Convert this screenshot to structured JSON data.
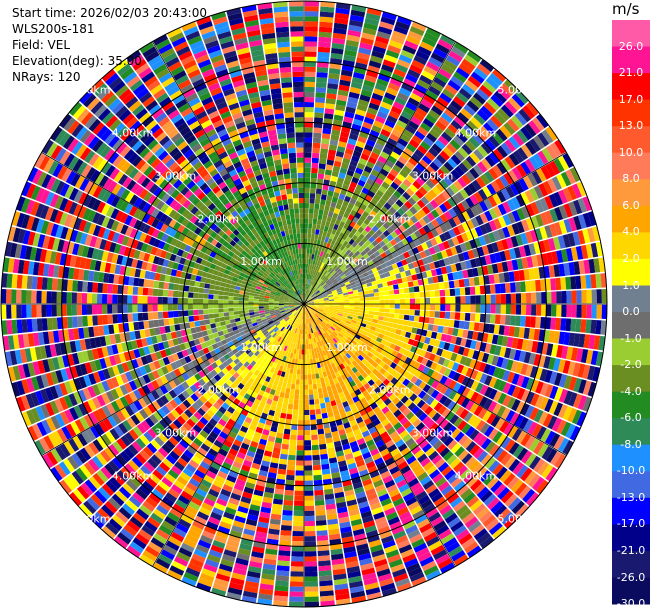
{
  "header": {
    "start_time": "Start time: 2026/02/03 20:43:00",
    "instrument": "WLS200s-181",
    "field": "Field: VEL",
    "elevation": "Elevation(deg): 35.00",
    "nrays": "NRays: 120"
  },
  "colorbar": {
    "unit": "m/s",
    "ticks": [
      "26.0",
      "21.0",
      "17.0",
      "13.0",
      "10.0",
      "8.0",
      "6.0",
      "4.0",
      "2.0",
      "1.0",
      "0.0",
      "-1.0",
      "-2.0",
      "-4.0",
      "-6.0",
      "-8.0",
      "-10.0",
      "-13.0",
      "-17.0",
      "-21.0",
      "-26.0",
      "-30.0"
    ],
    "colors": [
      "#ff5aa8",
      "#ff1493",
      "#ff0000",
      "#ff3300",
      "#ff5a2e",
      "#ff7b5a",
      "#ff9a3c",
      "#ffa500",
      "#ffd700",
      "#ffff00",
      "#708090",
      "#6e6e6e",
      "#9acd32",
      "#6b8e23",
      "#228b22",
      "#2e8b57",
      "#1e90ff",
      "#4169e1",
      "#0000ff",
      "#00008b",
      "#191970",
      "#0a0a5e"
    ]
  },
  "chart_data": {
    "type": "ppi",
    "field": "VEL",
    "units": "m/s",
    "elevation_deg": 35.0,
    "nrays": 120,
    "range_rings_km": [
      1.0,
      2.0,
      3.0,
      4.0,
      5.0
    ],
    "ring_labels": [
      "1.00km",
      "2.00km",
      "3.00km",
      "4.00km",
      "5.00km"
    ],
    "max_range_km": 5.0,
    "color_scale": [
      -30,
      26
    ],
    "velocity_pattern": "negative (green) toward upper-left, positive (yellow/orange) toward lower-right; noise beyond ~2.5 km"
  }
}
